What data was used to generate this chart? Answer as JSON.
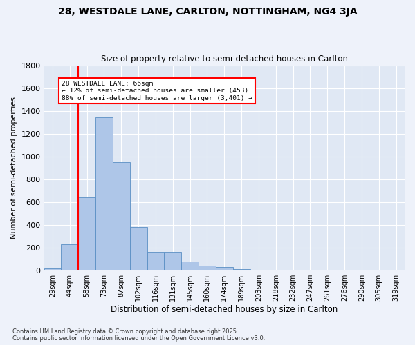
{
  "title": "28, WESTDALE LANE, CARLTON, NOTTINGHAM, NG4 3JA",
  "subtitle": "Size of property relative to semi-detached houses in Carlton",
  "xlabel": "Distribution of semi-detached houses by size in Carlton",
  "ylabel": "Number of semi-detached properties",
  "footer": "Contains HM Land Registry data © Crown copyright and database right 2025.\nContains public sector information licensed under the Open Government Licence v3.0.",
  "bar_labels": [
    "29sqm",
    "44sqm",
    "58sqm",
    "73sqm",
    "87sqm",
    "102sqm",
    "116sqm",
    "131sqm",
    "145sqm",
    "160sqm",
    "174sqm",
    "189sqm",
    "203sqm",
    "218sqm",
    "232sqm",
    "247sqm",
    "261sqm",
    "276sqm",
    "290sqm",
    "305sqm",
    "319sqm"
  ],
  "bar_values": [
    22,
    230,
    645,
    1345,
    950,
    385,
    165,
    165,
    80,
    45,
    30,
    15,
    8,
    2,
    2,
    1,
    1,
    1,
    0,
    0,
    0
  ],
  "bar_color": "#aec6e8",
  "bar_edge_color": "#5a8fc4",
  "ylim": [
    0,
    1800
  ],
  "yticks": [
    0,
    200,
    400,
    600,
    800,
    1000,
    1200,
    1400,
    1600,
    1800
  ],
  "vline_x": 1.5,
  "vline_color": "red",
  "annotation_title": "28 WESTDALE LANE: 66sqm",
  "annotation_line1": "← 12% of semi-detached houses are smaller (453)",
  "annotation_line2": "88% of semi-detached houses are larger (3,401) →",
  "background_color": "#eef2fa",
  "plot_bg_color": "#e0e8f4"
}
